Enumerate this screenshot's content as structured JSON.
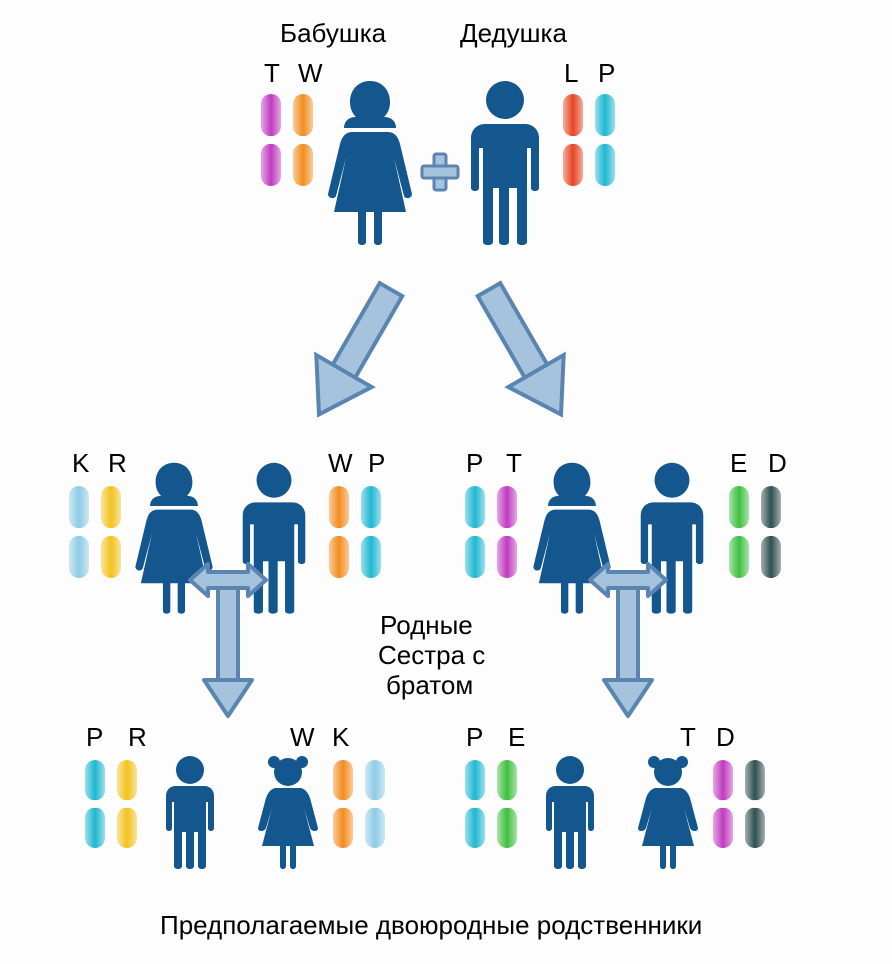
{
  "type": "infographic",
  "background_color": "#fdfdfd",
  "person_color": "#14578f",
  "arrow": {
    "fill": "#a5c3dd",
    "stroke": "#5b84b1",
    "stroke_width": 4
  },
  "text": {
    "grandmother": "Бабушка",
    "grandfather": "Дедушка",
    "siblings_line1": "Родные",
    "siblings_line2": "Сестра с",
    "siblings_line3": "братом",
    "cousins": "Предполагаемые двоюродные родственники",
    "title_fontsize": 26,
    "letter_fontsize": 26,
    "mid_fontsize": 26,
    "bottom_fontsize": 26
  },
  "letters": {
    "T": "T",
    "W": "W",
    "L": "L",
    "P": "P",
    "K": "K",
    "R": "R",
    "E": "E",
    "D": "D"
  },
  "chromo_colors": {
    "T_magenta": "#c03bc0",
    "W_orange": "#f28c1f",
    "L_red": "#e64525",
    "P_cyan": "#1fb7d1",
    "K_lightblue": "#8fcbe6",
    "R_yellow": "#f2c21f",
    "E_green": "#3fbf3f",
    "D_dark": "#2f4f4f"
  }
}
